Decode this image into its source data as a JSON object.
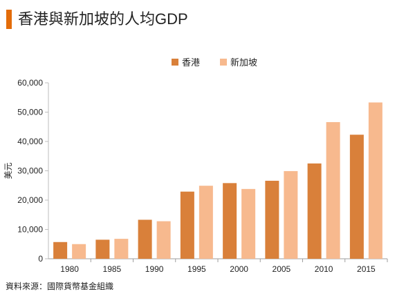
{
  "title": "香港與新加坡的人均GDP",
  "source": "資料來源：國際貨幣基金組織",
  "colors": {
    "accent": "#e36c0a",
    "hk": "#d9803a",
    "sg": "#f7b98e"
  },
  "chart_data": {
    "type": "bar",
    "title": "香港與新加坡的人均GDP",
    "ylabel": "美元",
    "xlabel": "",
    "ylim": [
      0,
      60000
    ],
    "yticks": [
      0,
      10000,
      20000,
      30000,
      40000,
      50000,
      60000
    ],
    "ytick_labels": [
      "0",
      "10,000",
      "20,000",
      "30,000",
      "40,000",
      "50,000",
      "60,000"
    ],
    "legend_position": "top-center",
    "grid": false,
    "categories": [
      "1980",
      "1985",
      "1990",
      "1995",
      "2000",
      "2005",
      "2010",
      "2015"
    ],
    "series": [
      {
        "name": "香港",
        "color": "#d9803a",
        "values": [
          5700,
          6500,
          13300,
          22900,
          25800,
          26600,
          32500,
          42300
        ]
      },
      {
        "name": "新加坡",
        "color": "#f7b98e",
        "values": [
          5000,
          6800,
          12800,
          24900,
          23800,
          29900,
          46600,
          53300
        ]
      }
    ]
  }
}
